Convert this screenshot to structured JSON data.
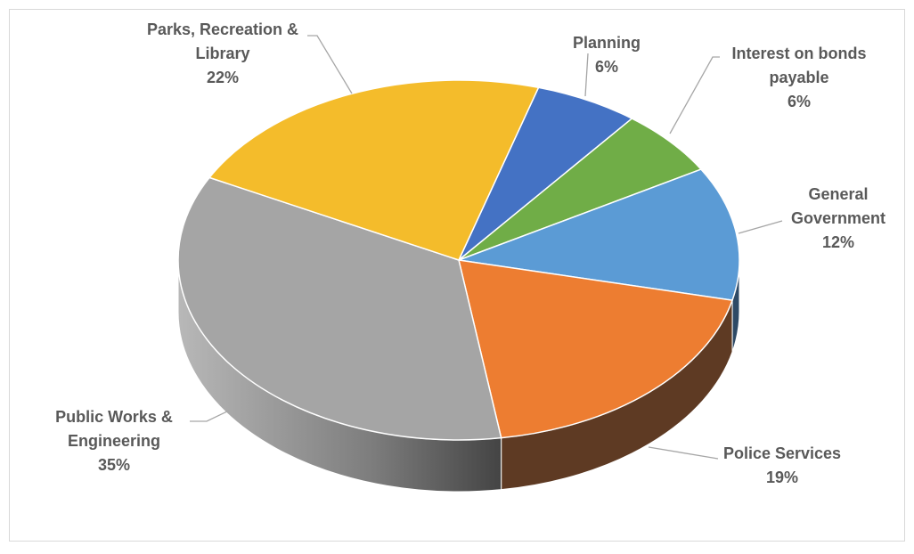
{
  "chart_data": {
    "type": "pie",
    "style": "3d",
    "title": "",
    "slices": [
      {
        "label_lines": [
          "Planning"
        ],
        "percent_label": "6%",
        "value": 6,
        "color": "#4472c4",
        "side_color": "#2f4f88"
      },
      {
        "label_lines": [
          "Interest on bonds",
          "payable"
        ],
        "percent_label": "6%",
        "value": 6,
        "color": "#70ad47",
        "side_color": "#4b7a2f"
      },
      {
        "label_lines": [
          "General",
          "Government"
        ],
        "percent_label": "12%",
        "value": 12,
        "color": "#5b9bd5",
        "side_color": "#2e4a66"
      },
      {
        "label_lines": [
          "Police Services"
        ],
        "percent_label": "19%",
        "value": 19,
        "color": "#ed7d31",
        "side_color": "#5e3a23"
      },
      {
        "label_lines": [
          "Public Works &",
          "Engineering"
        ],
        "percent_label": "35%",
        "value": 35,
        "color": "#a5a5a5",
        "side_color": "#7a7a7a"
      },
      {
        "label_lines": [
          "Parks, Recreation &",
          "Library"
        ],
        "percent_label": "22%",
        "value": 22,
        "color": "#f4bc2b",
        "side_color": "#a07a16"
      }
    ]
  }
}
